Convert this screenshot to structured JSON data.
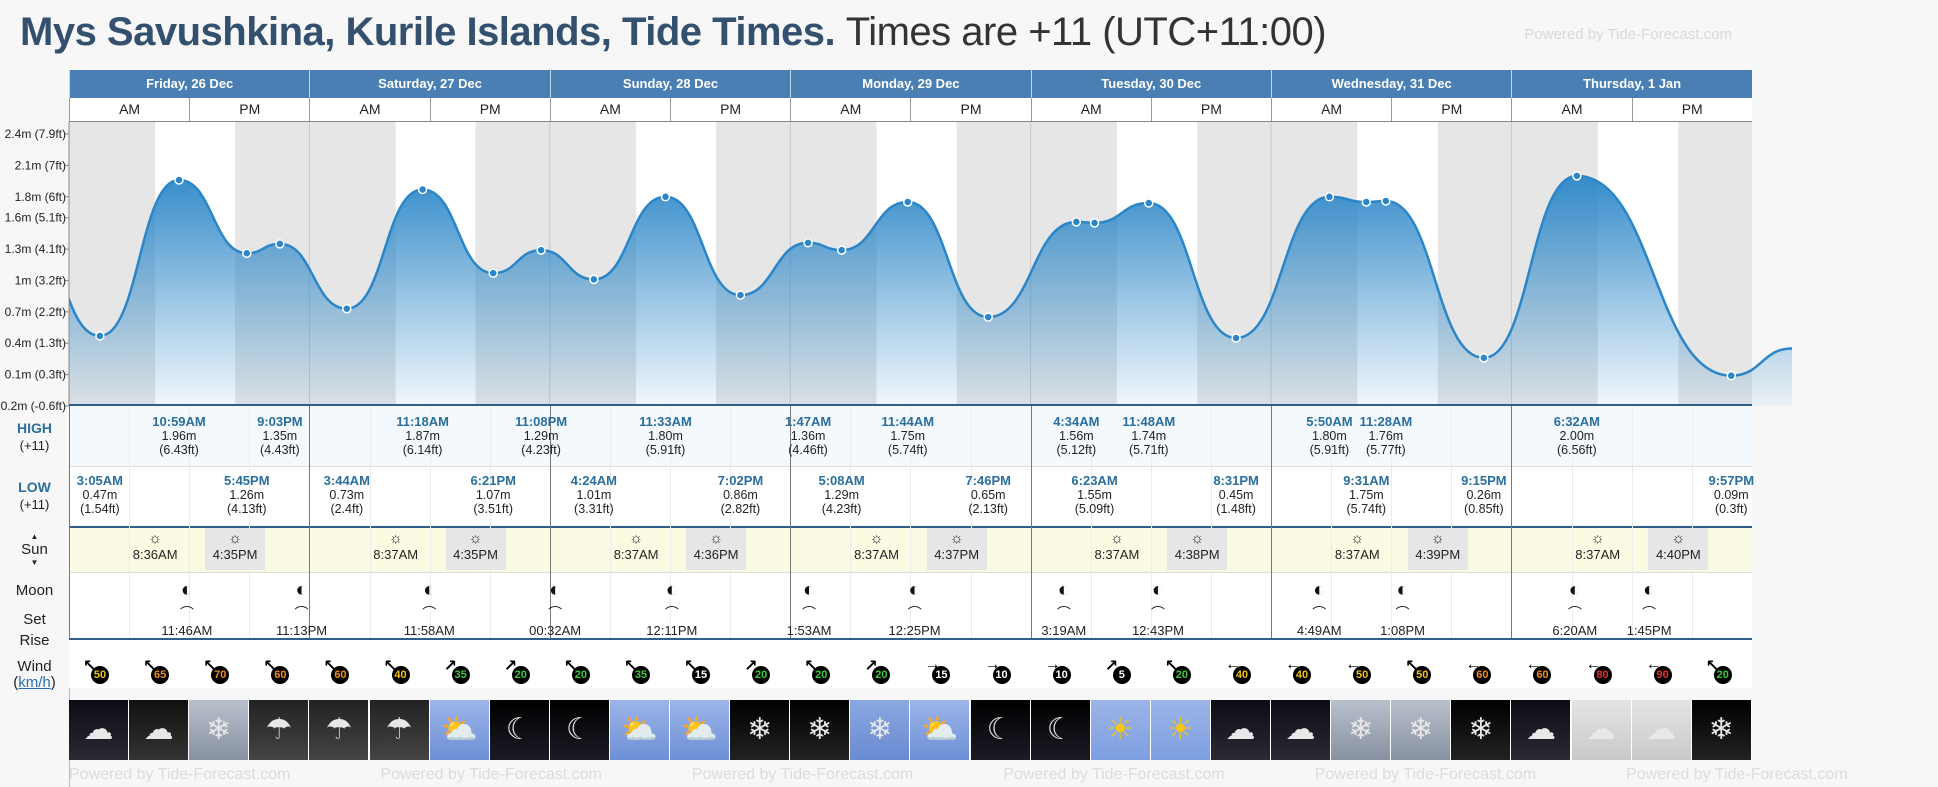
{
  "header": {
    "title": "Mys Savushkina, Kurile Islands, Tide Times.",
    "subtitle": "Times are +11 (UTC+11:00)",
    "powered": "Powered by Tide-Forecast.com"
  },
  "days": [
    {
      "label": "Friday, 26 Dec"
    },
    {
      "label": "Saturday, 27 Dec"
    },
    {
      "label": "Sunday, 28 Dec"
    },
    {
      "label": "Monday, 29 Dec"
    },
    {
      "label": "Tuesday, 30 Dec"
    },
    {
      "label": "Wednesday, 31 Dec"
    },
    {
      "label": "Thursday, 1 Jan"
    }
  ],
  "ampm": {
    "am": "AM",
    "pm": "PM"
  },
  "row_labels": {
    "high": "HIGH",
    "high_tz": "(+11)",
    "low": "LOW",
    "low_tz": "(+11)",
    "sun": "Sun",
    "moon": "Moon",
    "set": "Set",
    "rise": "Rise",
    "wind": "Wind",
    "wind_unit": "km/h"
  },
  "chart_data": {
    "type": "area",
    "title": "Mys Savushkina, Kurile Islands, Tide Times.",
    "ylabel": "",
    "y_ticks": [
      {
        "v": 2.4,
        "label": "2.4m (7.9ft)"
      },
      {
        "v": 2.1,
        "label": "2.1m (7ft)"
      },
      {
        "v": 1.8,
        "label": "1.8m (6ft)"
      },
      {
        "v": 1.6,
        "label": "1.6m (5.1ft)"
      },
      {
        "v": 1.3,
        "label": "1.3m (4.1ft)"
      },
      {
        "v": 1.0,
        "label": "1m (3.2ft)"
      },
      {
        "v": 0.7,
        "label": "0.7m (2.2ft)"
      },
      {
        "v": 0.4,
        "label": "0.4m (1.3ft)"
      },
      {
        "v": 0.1,
        "label": "0.1m (0.3ft)"
      },
      {
        "v": -0.2,
        "label": "-0.2m (-0.6ft)"
      }
    ],
    "ylim": [
      -0.2,
      2.4
    ],
    "series": [
      {
        "name": "tide",
        "points": [
          {
            "day": 0,
            "time": "3:05AM",
            "h": 0.47
          },
          {
            "day": 0,
            "time": "10:59AM",
            "h": 1.96
          },
          {
            "day": 0,
            "time": "5:45PM",
            "h": 1.26
          },
          {
            "day": 0,
            "time": "9:03PM",
            "h": 1.35
          },
          {
            "day": 1,
            "time": "3:44AM",
            "h": 0.73
          },
          {
            "day": 1,
            "time": "11:18AM",
            "h": 1.87
          },
          {
            "day": 1,
            "time": "6:21PM",
            "h": 1.07
          },
          {
            "day": 1,
            "time": "11:08PM",
            "h": 1.29
          },
          {
            "day": 2,
            "time": "4:24AM",
            "h": 1.01
          },
          {
            "day": 2,
            "time": "11:33AM",
            "h": 1.8
          },
          {
            "day": 2,
            "time": "7:02PM",
            "h": 0.86
          },
          {
            "day": 3,
            "time": "1:47AM",
            "h": 1.36
          },
          {
            "day": 3,
            "time": "5:08AM",
            "h": 1.29
          },
          {
            "day": 3,
            "time": "11:44AM",
            "h": 1.75
          },
          {
            "day": 3,
            "time": "7:46PM",
            "h": 0.65
          },
          {
            "day": 4,
            "time": "4:34AM",
            "h": 1.56
          },
          {
            "day": 4,
            "time": "6:23AM",
            "h": 1.55
          },
          {
            "day": 4,
            "time": "11:48AM",
            "h": 1.74
          },
          {
            "day": 4,
            "time": "8:31PM",
            "h": 0.45
          },
          {
            "day": 5,
            "time": "5:50AM",
            "h": 1.8
          },
          {
            "day": 5,
            "time": "9:31AM",
            "h": 1.75
          },
          {
            "day": 5,
            "time": "11:28AM",
            "h": 1.76
          },
          {
            "day": 5,
            "time": "9:15PM",
            "h": 0.26
          },
          {
            "day": 6,
            "time": "6:32AM",
            "h": 2.0
          },
          {
            "day": 6,
            "time": "9:57PM",
            "h": 0.09
          }
        ]
      }
    ],
    "grid": false
  },
  "tides": {
    "high": [
      {
        "day": 0,
        "time": "10:59AM",
        "m": "1.96m",
        "ft": "(6.43ft)"
      },
      {
        "day": 0,
        "time": "9:03PM",
        "m": "1.35m",
        "ft": "(4.43ft)"
      },
      {
        "day": 1,
        "time": "11:18AM",
        "m": "1.87m",
        "ft": "(6.14ft)"
      },
      {
        "day": 1,
        "time": "11:08PM",
        "m": "1.29m",
        "ft": "(4.23ft)"
      },
      {
        "day": 2,
        "time": "11:33AM",
        "m": "1.80m",
        "ft": "(5.91ft)"
      },
      {
        "day": 3,
        "time": "1:47AM",
        "m": "1.36m",
        "ft": "(4.46ft)"
      },
      {
        "day": 3,
        "time": "11:44AM",
        "m": "1.75m",
        "ft": "(5.74ft)"
      },
      {
        "day": 4,
        "time": "4:34AM",
        "m": "1.56m",
        "ft": "(5.12ft)"
      },
      {
        "day": 4,
        "time": "11:48AM",
        "m": "1.74m",
        "ft": "(5.71ft)"
      },
      {
        "day": 5,
        "time": "5:50AM",
        "m": "1.80m",
        "ft": "(5.91ft)"
      },
      {
        "day": 5,
        "time": "11:28AM",
        "m": "1.76m",
        "ft": "(5.77ft)"
      },
      {
        "day": 6,
        "time": "6:32AM",
        "m": "2.00m",
        "ft": "(6.56ft)"
      }
    ],
    "low": [
      {
        "day": 0,
        "time": "3:05AM",
        "m": "0.47m",
        "ft": "(1.54ft)"
      },
      {
        "day": 0,
        "time": "5:45PM",
        "m": "1.26m",
        "ft": "(4.13ft)"
      },
      {
        "day": 1,
        "time": "3:44AM",
        "m": "0.73m",
        "ft": "(2.4ft)"
      },
      {
        "day": 1,
        "time": "6:21PM",
        "m": "1.07m",
        "ft": "(3.51ft)"
      },
      {
        "day": 2,
        "time": "4:24AM",
        "m": "1.01m",
        "ft": "(3.31ft)"
      },
      {
        "day": 2,
        "time": "7:02PM",
        "m": "0.86m",
        "ft": "(2.82ft)"
      },
      {
        "day": 3,
        "time": "5:08AM",
        "m": "1.29m",
        "ft": "(4.23ft)"
      },
      {
        "day": 3,
        "time": "7:46PM",
        "m": "0.65m",
        "ft": "(2.13ft)"
      },
      {
        "day": 4,
        "time": "6:23AM",
        "m": "1.55m",
        "ft": "(5.09ft)"
      },
      {
        "day": 4,
        "time": "8:31PM",
        "m": "0.45m",
        "ft": "(1.48ft)"
      },
      {
        "day": 5,
        "time": "9:31AM",
        "m": "1.75m",
        "ft": "(5.74ft)"
      },
      {
        "day": 5,
        "time": "9:15PM",
        "m": "0.26m",
        "ft": "(0.85ft)"
      },
      {
        "day": 6,
        "time": "9:57PM",
        "m": "0.09m",
        "ft": "(0.3ft)"
      }
    ]
  },
  "sun": [
    {
      "rise": "8:36AM",
      "set": "4:35PM"
    },
    {
      "rise": "8:37AM",
      "set": "4:35PM"
    },
    {
      "rise": "8:37AM",
      "set": "4:36PM"
    },
    {
      "rise": "8:37AM",
      "set": "4:37PM"
    },
    {
      "rise": "8:37AM",
      "set": "4:38PM"
    },
    {
      "rise": "8:37AM",
      "set": "4:39PM"
    },
    {
      "rise": "8:37AM",
      "set": "4:40PM"
    }
  ],
  "moon": [
    {
      "day": 0,
      "time": "11:46AM",
      "event": "rise"
    },
    {
      "day": 0,
      "time": "11:13PM",
      "event": "set"
    },
    {
      "day": 1,
      "time": "11:58AM",
      "event": "rise"
    },
    {
      "day": 2,
      "time": "00:32AM",
      "event": "set"
    },
    {
      "day": 2,
      "time": "12:11PM",
      "event": "rise"
    },
    {
      "day": 3,
      "time": "1:53AM",
      "event": "set"
    },
    {
      "day": 3,
      "time": "12:25PM",
      "event": "rise"
    },
    {
      "day": 4,
      "time": "3:19AM",
      "event": "set"
    },
    {
      "day": 4,
      "time": "12:43PM",
      "event": "rise"
    },
    {
      "day": 5,
      "time": "4:49AM",
      "event": "set"
    },
    {
      "day": 5,
      "time": "1:08PM",
      "event": "rise"
    },
    {
      "day": 6,
      "time": "6:20AM",
      "event": "set"
    },
    {
      "day": 6,
      "time": "1:45PM",
      "event": "rise"
    }
  ],
  "wind": [
    {
      "v": "50",
      "dir": "↖",
      "color": "#f0c419"
    },
    {
      "v": "65",
      "dir": "↖",
      "color": "#f28e1c"
    },
    {
      "v": "70",
      "dir": "↖",
      "color": "#f28e1c"
    },
    {
      "v": "60",
      "dir": "↖",
      "color": "#f28e1c"
    },
    {
      "v": "60",
      "dir": "↖",
      "color": "#f28e1c"
    },
    {
      "v": "40",
      "dir": "↖",
      "color": "#f0c419"
    },
    {
      "v": "35",
      "dir": "↗",
      "color": "#3ec93e"
    },
    {
      "v": "20",
      "dir": "↗",
      "color": "#3ec93e"
    },
    {
      "v": "20",
      "dir": "↖",
      "color": "#3ec93e"
    },
    {
      "v": "35",
      "dir": "↖",
      "color": "#3ec93e"
    },
    {
      "v": "15",
      "dir": "↖",
      "color": "#ffffff"
    },
    {
      "v": "20",
      "dir": "↗",
      "color": "#3ec93e"
    },
    {
      "v": "20",
      "dir": "↖",
      "color": "#3ec93e"
    },
    {
      "v": "20",
      "dir": "↗",
      "color": "#3ec93e"
    },
    {
      "v": "15",
      "dir": "→",
      "color": "#ffffff"
    },
    {
      "v": "10",
      "dir": "→",
      "color": "#ffffff"
    },
    {
      "v": "10",
      "dir": "→",
      "color": "#ffffff"
    },
    {
      "v": "5",
      "dir": "↗",
      "color": "#ffffff"
    },
    {
      "v": "20",
      "dir": "↖",
      "color": "#3ec93e"
    },
    {
      "v": "40",
      "dir": "←",
      "color": "#f0c419"
    },
    {
      "v": "40",
      "dir": "←",
      "color": "#f0c419"
    },
    {
      "v": "50",
      "dir": "←",
      "color": "#f0c419"
    },
    {
      "v": "50",
      "dir": "↖",
      "color": "#f0c419"
    },
    {
      "v": "60",
      "dir": "←",
      "color": "#f28e1c"
    },
    {
      "v": "60",
      "dir": "←",
      "color": "#f28e1c"
    },
    {
      "v": "80",
      "dir": "←",
      "color": "#e8302a"
    },
    {
      "v": "90",
      "dir": "←",
      "color": "#e8302a"
    },
    {
      "v": "20",
      "dir": "↖",
      "color": "#3ec93e"
    }
  ],
  "weather": [
    "cloudy-night",
    "cloudy",
    "snow",
    "rain",
    "rain",
    "rain",
    "partly-sunny",
    "cloudy-moon",
    "cloudy-moon",
    "partly-sunny",
    "partly-sunny",
    "snow-night",
    "snow-night",
    "snow-day",
    "partly-sunny",
    "cloudy-moon",
    "cloudy-moon",
    "sunny",
    "sunny",
    "cloudy-night",
    "cloudy-night",
    "snow",
    "snow",
    "snow-night",
    "cloudy-night",
    "overcast",
    "overcast",
    "snow-night"
  ],
  "colors": {
    "accent": "#4a7fb3",
    "title": "#33506e",
    "tide": "#2a86c8",
    "highlight": "#2b6f9e"
  }
}
